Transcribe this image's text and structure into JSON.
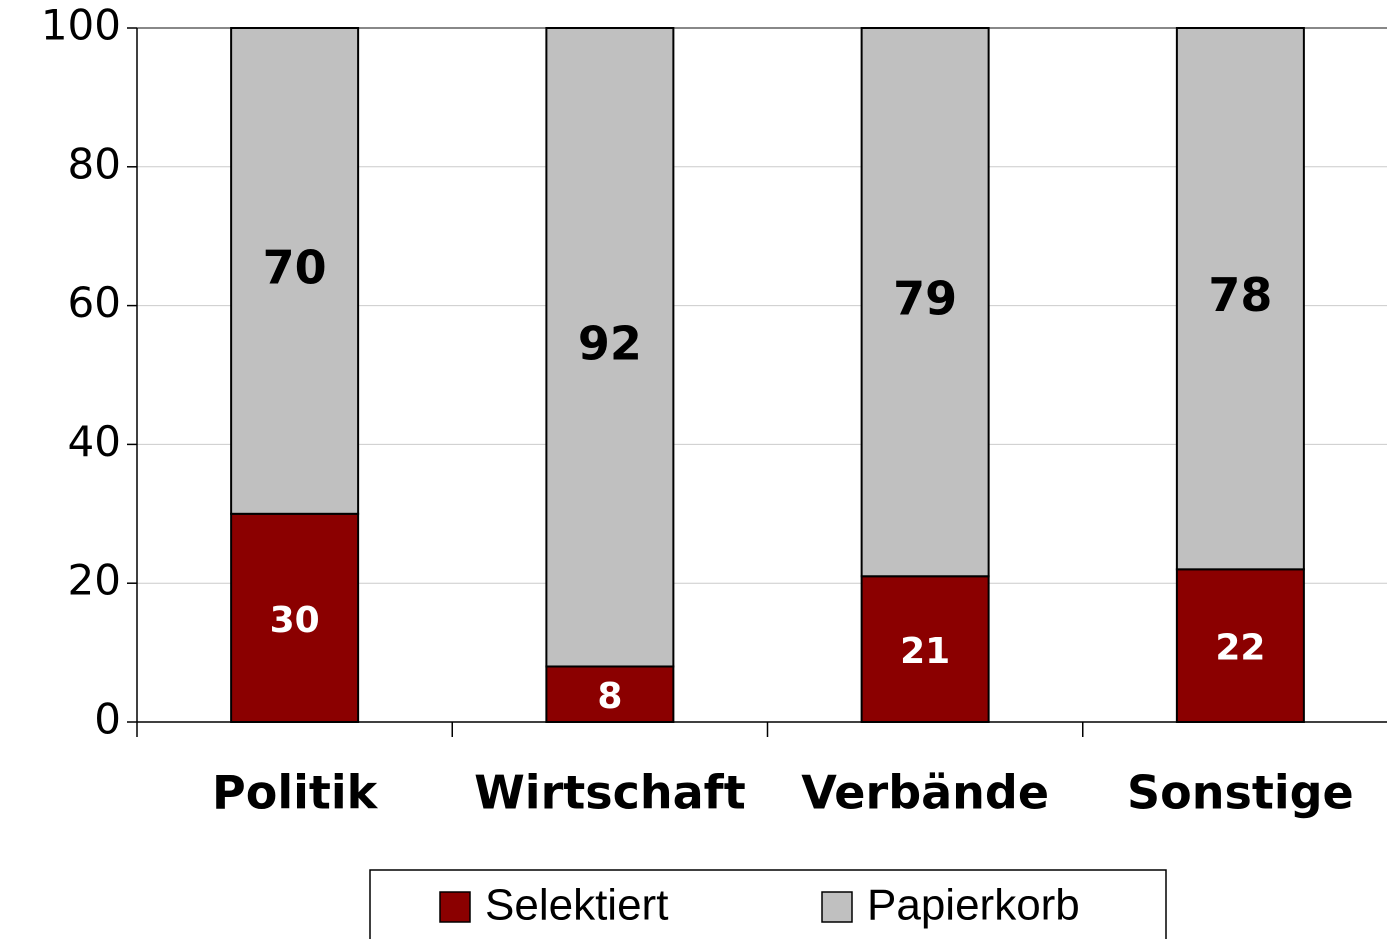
{
  "chart_data": {
    "type": "stacked_bar",
    "categories": [
      "Politik",
      "Wirtschaft",
      "Verbände",
      "Sonstige"
    ],
    "series": [
      {
        "name": "Selektiert",
        "color": "#8b0000",
        "values": [
          30,
          8,
          21,
          22
        ]
      },
      {
        "name": "Papierkorb",
        "color": "#c0c0c0",
        "values": [
          70,
          92,
          79,
          78
        ]
      }
    ],
    "ylim": [
      0,
      100
    ],
    "yticks": [
      0,
      20,
      40,
      60,
      80,
      100
    ],
    "grid": true,
    "legend": "bottom"
  }
}
